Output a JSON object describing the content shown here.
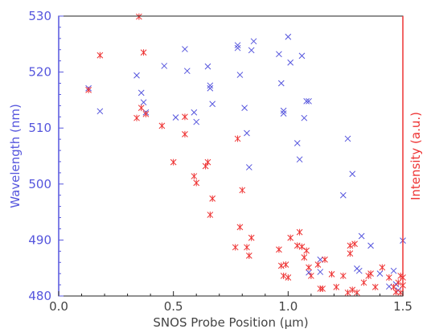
{
  "chart_data": {
    "type": "scatter",
    "xlabel": "SNOS Probe Position (µm)",
    "ylabel_left": "Wavelength (nm)",
    "ylabel_right": "Intensity (a.u.)",
    "xlim": [
      0.0,
      1.5
    ],
    "ylim_left": [
      480,
      530
    ],
    "x_ticks": [
      "0.0",
      "0.5",
      "1.0",
      "1.5"
    ],
    "y_ticks_left": [
      "480",
      "490",
      "500",
      "510",
      "520",
      "530"
    ],
    "colors": {
      "left_axis": "#5555dd",
      "right_axis": "#ee3333",
      "frame": "#222222"
    },
    "series": [
      {
        "marker": "x",
        "color": "#5555dd",
        "axis": "left",
        "points": [
          [
            0.13,
            517.1
          ],
          [
            0.18,
            513.0
          ],
          [
            0.34,
            519.4
          ],
          [
            0.36,
            516.3
          ],
          [
            0.37,
            514.6
          ],
          [
            0.38,
            512.8
          ],
          [
            0.46,
            521.1
          ],
          [
            0.51,
            511.9
          ],
          [
            0.55,
            524.1
          ],
          [
            0.56,
            520.2
          ],
          [
            0.59,
            512.8
          ],
          [
            0.6,
            511.1
          ],
          [
            0.65,
            521.0
          ],
          [
            0.66,
            517.6
          ],
          [
            0.66,
            517.1
          ],
          [
            0.67,
            514.3
          ],
          [
            0.78,
            524.8
          ],
          [
            0.78,
            524.3
          ],
          [
            0.79,
            519.5
          ],
          [
            0.81,
            513.6
          ],
          [
            0.82,
            509.1
          ],
          [
            0.83,
            503.0
          ],
          [
            0.84,
            523.9
          ],
          [
            0.85,
            525.5
          ],
          [
            0.96,
            523.2
          ],
          [
            0.97,
            518.0
          ],
          [
            0.98,
            512.6
          ],
          [
            0.98,
            513.1
          ],
          [
            1.0,
            526.3
          ],
          [
            1.01,
            521.7
          ],
          [
            1.04,
            507.3
          ],
          [
            1.05,
            504.4
          ],
          [
            1.06,
            522.9
          ],
          [
            1.07,
            511.8
          ],
          [
            1.08,
            514.8
          ],
          [
            1.09,
            514.8
          ],
          [
            1.09,
            484.2
          ],
          [
            1.14,
            486.5
          ],
          [
            1.14,
            484.3
          ],
          [
            1.24,
            498.0
          ],
          [
            1.26,
            508.1
          ],
          [
            1.28,
            501.8
          ],
          [
            1.3,
            484.9
          ],
          [
            1.31,
            484.5
          ],
          [
            1.32,
            490.7
          ],
          [
            1.36,
            489.0
          ],
          [
            1.4,
            484.0
          ],
          [
            1.44,
            481.7
          ],
          [
            1.46,
            484.5
          ],
          [
            1.47,
            482.1
          ],
          [
            1.48,
            481.0
          ],
          [
            1.5,
            489.9
          ]
        ]
      },
      {
        "marker": "asterisk",
        "color": "#ee3333",
        "axis": "right",
        "points": [
          [
            0.13,
            516.8
          ],
          [
            0.18,
            523.0
          ],
          [
            0.34,
            511.8
          ],
          [
            0.35,
            529.9
          ],
          [
            0.36,
            513.6
          ],
          [
            0.37,
            523.5
          ],
          [
            0.38,
            512.5
          ],
          [
            0.45,
            510.4
          ],
          [
            0.5,
            503.9
          ],
          [
            0.55,
            508.9
          ],
          [
            0.55,
            512.0
          ],
          [
            0.59,
            501.4
          ],
          [
            0.6,
            500.2
          ],
          [
            0.64,
            503.2
          ],
          [
            0.65,
            503.9
          ],
          [
            0.66,
            494.5
          ],
          [
            0.67,
            497.4
          ],
          [
            0.77,
            488.7
          ],
          [
            0.78,
            508.1
          ],
          [
            0.79,
            492.3
          ],
          [
            0.8,
            498.9
          ],
          [
            0.82,
            488.7
          ],
          [
            0.83,
            487.2
          ],
          [
            0.84,
            490.4
          ],
          [
            0.96,
            488.3
          ],
          [
            0.97,
            485.4
          ],
          [
            0.98,
            483.6
          ],
          [
            0.99,
            485.6
          ],
          [
            1.0,
            483.3
          ],
          [
            1.01,
            490.4
          ],
          [
            1.04,
            489.0
          ],
          [
            1.05,
            491.4
          ],
          [
            1.06,
            488.8
          ],
          [
            1.07,
            486.9
          ],
          [
            1.08,
            488.1
          ],
          [
            1.09,
            485.1
          ],
          [
            1.1,
            483.6
          ],
          [
            1.13,
            485.6
          ],
          [
            1.14,
            481.3
          ],
          [
            1.15,
            481.3
          ],
          [
            1.16,
            486.5
          ],
          [
            1.19,
            483.9
          ],
          [
            1.21,
            481.6
          ],
          [
            1.24,
            483.6
          ],
          [
            1.26,
            480.6
          ],
          [
            1.27,
            487.6
          ],
          [
            1.27,
            489.0
          ],
          [
            1.28,
            481.1
          ],
          [
            1.29,
            489.3
          ],
          [
            1.3,
            480.6
          ],
          [
            1.33,
            482.4
          ],
          [
            1.35,
            483.6
          ],
          [
            1.36,
            484.0
          ],
          [
            1.38,
            481.6
          ],
          [
            1.41,
            485.1
          ],
          [
            1.44,
            483.3
          ],
          [
            1.46,
            481.6
          ],
          [
            1.47,
            480.7
          ],
          [
            1.48,
            482.4
          ],
          [
            1.49,
            483.6
          ],
          [
            1.49,
            480.6
          ],
          [
            1.5,
            481.9
          ],
          [
            1.5,
            483.3
          ]
        ]
      }
    ]
  }
}
